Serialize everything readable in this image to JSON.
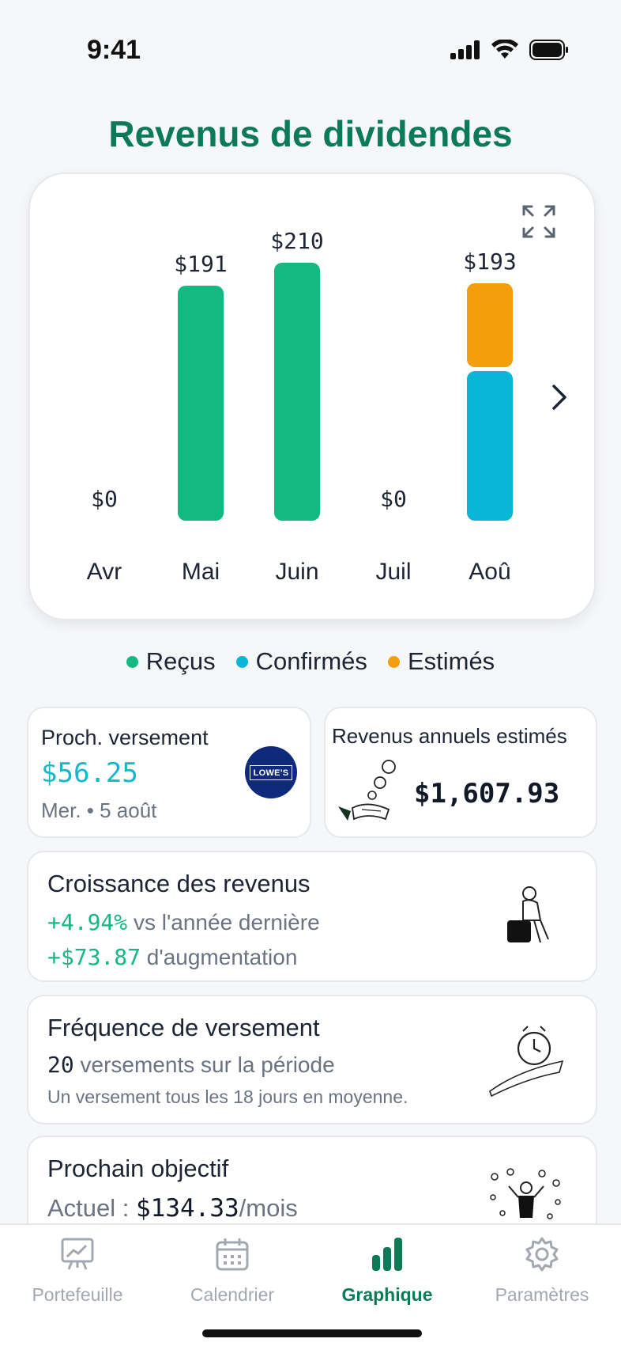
{
  "status_bar": {
    "time": "9:41"
  },
  "page_title": "Revenus de dividendes",
  "chart_data": {
    "type": "bar",
    "stacked": true,
    "categories": [
      "Avr",
      "Mai",
      "Juin",
      "Juil",
      "Aoû"
    ],
    "value_labels": [
      "$0",
      "$191",
      "$210",
      "$0",
      "$193"
    ],
    "series": [
      {
        "name": "Reçus",
        "color": "#13b981",
        "values": [
          0,
          191,
          210,
          0,
          0
        ]
      },
      {
        "name": "Confirmés",
        "color": "#0ab6d6",
        "values": [
          0,
          0,
          0,
          0,
          122
        ]
      },
      {
        "name": "Estimés",
        "color": "#f59e0b",
        "values": [
          0,
          0,
          0,
          0,
          71
        ]
      }
    ],
    "ylim": [
      0,
      210
    ],
    "legend": "bottom-center"
  },
  "legend": [
    {
      "label": "Reçus",
      "color": "#13b981"
    },
    {
      "label": "Confirmés",
      "color": "#0ab6d6"
    },
    {
      "label": "Estimés",
      "color": "#f59e0b"
    }
  ],
  "next_payment": {
    "title": "Proch. versement",
    "amount": "$56.25",
    "date": "Mer. • 5 août",
    "logo_text": "LOWE'S"
  },
  "annual_income": {
    "title": "Revenus annuels estimés",
    "amount": "$1,607.93"
  },
  "growth": {
    "title": "Croissance des revenus",
    "pct": "+4.94%",
    "pct_text": "vs l'année dernière",
    "amount": "+$73.87",
    "amount_text": "d'augmentation"
  },
  "frequency": {
    "title": "Fréquence de versement",
    "count": "20",
    "count_text": "versements sur la période",
    "note": "Un versement tous les 18 jours en moyenne."
  },
  "goal": {
    "title": "Prochain objectif",
    "current_label": "Actuel :",
    "current_value": "$134.33",
    "unit": "/mois"
  },
  "tabs": [
    {
      "label": "Portefeuille",
      "icon": "chart-board-icon"
    },
    {
      "label": "Calendrier",
      "icon": "calendar-icon"
    },
    {
      "label": "Graphique",
      "icon": "bar-chart-icon"
    },
    {
      "label": "Paramètres",
      "icon": "gear-icon"
    }
  ],
  "active_tab": "Graphique",
  "colors": {
    "accent": "#0c7a57",
    "received": "#13b981",
    "confirmed": "#0ab6d6",
    "estimated": "#f59e0b"
  }
}
